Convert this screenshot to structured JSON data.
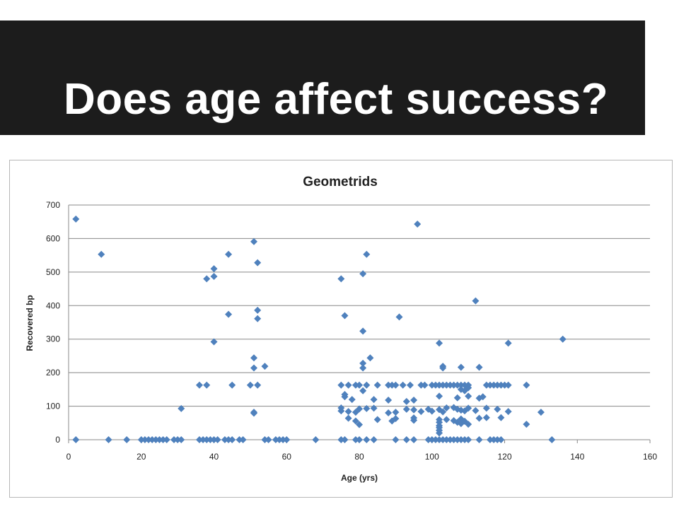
{
  "slide": {
    "title": "Does age affect success?"
  },
  "colors": {
    "title_bar": "#1c1c1c",
    "title_text": "#ffffff",
    "marker": "#4f81bd",
    "grid": "#888888"
  },
  "chart_data": {
    "type": "scatter",
    "title": "Geometrids",
    "xlabel": "Age (yrs)",
    "ylabel": "Recovered bp",
    "xlim": [
      0,
      160
    ],
    "ylim": [
      0,
      700
    ],
    "x_ticks": [
      "0",
      "20",
      "40",
      "60",
      "80",
      "100",
      "120",
      "140",
      "160"
    ],
    "y_ticks": [
      "0",
      "100",
      "200",
      "300",
      "400",
      "500",
      "600",
      "700"
    ],
    "grid": "horizontal",
    "legend": "none",
    "marker": "diamond",
    "points": [
      [
        2,
        658
      ],
      [
        9,
        553
      ],
      [
        96,
        643
      ],
      [
        51,
        591
      ],
      [
        82,
        553
      ],
      [
        44,
        553
      ],
      [
        52,
        528
      ],
      [
        40,
        510
      ],
      [
        81,
        495
      ],
      [
        40,
        487
      ],
      [
        38,
        480
      ],
      [
        75,
        480
      ],
      [
        112,
        414
      ],
      [
        52,
        386
      ],
      [
        44,
        374
      ],
      [
        76,
        370
      ],
      [
        91,
        366
      ],
      [
        52,
        361
      ],
      [
        81,
        324
      ],
      [
        136,
        300
      ],
      [
        40,
        292
      ],
      [
        102,
        288
      ],
      [
        121,
        288
      ],
      [
        51,
        244
      ],
      [
        83,
        244
      ],
      [
        81,
        228
      ],
      [
        54,
        219
      ],
      [
        51,
        214
      ],
      [
        81,
        214
      ],
      [
        103,
        219
      ],
      [
        103,
        214
      ],
      [
        108,
        216
      ],
      [
        113,
        216
      ],
      [
        36,
        163
      ],
      [
        38,
        163
      ],
      [
        45,
        163
      ],
      [
        50,
        163
      ],
      [
        52,
        163
      ],
      [
        75,
        163
      ],
      [
        77,
        163
      ],
      [
        79,
        163
      ],
      [
        80,
        163
      ],
      [
        82,
        163
      ],
      [
        85,
        163
      ],
      [
        88,
        163
      ],
      [
        89,
        163
      ],
      [
        90,
        163
      ],
      [
        92,
        163
      ],
      [
        94,
        163
      ],
      [
        97,
        163
      ],
      [
        98,
        163
      ],
      [
        100,
        163
      ],
      [
        101,
        163
      ],
      [
        102,
        163
      ],
      [
        103,
        163
      ],
      [
        104,
        163
      ],
      [
        105,
        163
      ],
      [
        106,
        163
      ],
      [
        107,
        163
      ],
      [
        108,
        163
      ],
      [
        109,
        163
      ],
      [
        110,
        163
      ],
      [
        115,
        163
      ],
      [
        116,
        163
      ],
      [
        117,
        163
      ],
      [
        118,
        163
      ],
      [
        119,
        163
      ],
      [
        120,
        163
      ],
      [
        121,
        163
      ],
      [
        126,
        163
      ],
      [
        81,
        146
      ],
      [
        109,
        146
      ],
      [
        108,
        150
      ],
      [
        110,
        155
      ],
      [
        76,
        135
      ],
      [
        76,
        128
      ],
      [
        78,
        120
      ],
      [
        84,
        120
      ],
      [
        88,
        118
      ],
      [
        93,
        114
      ],
      [
        95,
        118
      ],
      [
        102,
        130
      ],
      [
        107,
        125
      ],
      [
        110,
        130
      ],
      [
        113,
        124
      ],
      [
        114,
        128
      ],
      [
        31,
        93
      ],
      [
        75,
        95
      ],
      [
        75,
        86
      ],
      [
        77,
        84
      ],
      [
        79,
        82
      ],
      [
        80,
        92
      ],
      [
        82,
        93
      ],
      [
        84,
        94
      ],
      [
        88,
        80
      ],
      [
        90,
        82
      ],
      [
        93,
        91
      ],
      [
        95,
        89
      ],
      [
        97,
        84
      ],
      [
        99,
        91
      ],
      [
        100,
        85
      ],
      [
        102,
        90
      ],
      [
        103,
        83
      ],
      [
        104,
        95
      ],
      [
        106,
        96
      ],
      [
        107,
        91
      ],
      [
        108,
        88
      ],
      [
        109,
        86
      ],
      [
        110,
        94
      ],
      [
        112,
        87
      ],
      [
        115,
        94
      ],
      [
        118,
        91
      ],
      [
        121,
        84
      ],
      [
        130,
        82
      ],
      [
        51,
        82
      ],
      [
        51,
        79
      ],
      [
        77,
        64
      ],
      [
        79,
        56
      ],
      [
        80,
        45
      ],
      [
        85,
        60
      ],
      [
        89,
        56
      ],
      [
        90,
        63
      ],
      [
        95,
        65
      ],
      [
        95,
        58
      ],
      [
        102,
        60
      ],
      [
        102,
        52
      ],
      [
        102,
        42
      ],
      [
        102,
        36
      ],
      [
        102,
        28
      ],
      [
        102,
        20
      ],
      [
        104,
        60
      ],
      [
        106,
        57
      ],
      [
        107,
        52
      ],
      [
        108,
        62
      ],
      [
        108,
        48
      ],
      [
        109,
        55
      ],
      [
        110,
        46
      ],
      [
        113,
        64
      ],
      [
        115,
        66
      ],
      [
        119,
        66
      ],
      [
        126,
        46
      ],
      [
        2,
        0
      ],
      [
        11,
        0
      ],
      [
        16,
        0
      ],
      [
        20,
        0
      ],
      [
        21,
        0
      ],
      [
        22,
        0
      ],
      [
        23,
        0
      ],
      [
        24,
        0
      ],
      [
        25,
        0
      ],
      [
        26,
        0
      ],
      [
        27,
        0
      ],
      [
        29,
        0
      ],
      [
        30,
        0
      ],
      [
        31,
        0
      ],
      [
        36,
        0
      ],
      [
        37,
        0
      ],
      [
        38,
        0
      ],
      [
        39,
        0
      ],
      [
        40,
        0
      ],
      [
        41,
        0
      ],
      [
        43,
        0
      ],
      [
        44,
        0
      ],
      [
        45,
        0
      ],
      [
        47,
        0
      ],
      [
        48,
        0
      ],
      [
        54,
        0
      ],
      [
        55,
        0
      ],
      [
        57,
        0
      ],
      [
        58,
        0
      ],
      [
        59,
        0
      ],
      [
        60,
        0
      ],
      [
        68,
        0
      ],
      [
        75,
        0
      ],
      [
        76,
        0
      ],
      [
        79,
        0
      ],
      [
        80,
        0
      ],
      [
        82,
        0
      ],
      [
        84,
        0
      ],
      [
        90,
        0
      ],
      [
        93,
        0
      ],
      [
        95,
        0
      ],
      [
        99,
        0
      ],
      [
        100,
        0
      ],
      [
        101,
        0
      ],
      [
        102,
        0
      ],
      [
        103,
        0
      ],
      [
        104,
        0
      ],
      [
        105,
        0
      ],
      [
        106,
        0
      ],
      [
        107,
        0
      ],
      [
        108,
        0
      ],
      [
        109,
        0
      ],
      [
        110,
        0
      ],
      [
        113,
        0
      ],
      [
        116,
        0
      ],
      [
        117,
        0
      ],
      [
        118,
        0
      ],
      [
        119,
        0
      ],
      [
        133,
        0
      ]
    ]
  }
}
